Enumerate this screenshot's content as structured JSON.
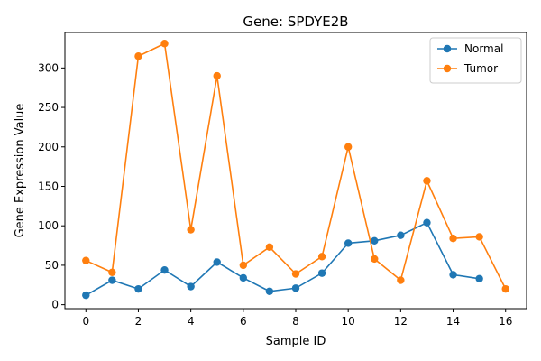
{
  "chart_data": {
    "type": "line",
    "title": "Gene: SPDYE2B",
    "xlabel": "Sample ID",
    "ylabel": "Gene Expression Value",
    "xlim": [
      -0.8,
      16.8
    ],
    "ylim": [
      -5,
      345
    ],
    "xticks": [
      0,
      2,
      4,
      6,
      8,
      10,
      12,
      14,
      16
    ],
    "yticks": [
      0,
      50,
      100,
      150,
      200,
      250,
      300
    ],
    "grid": false,
    "legend_position": "top-right",
    "series": [
      {
        "name": "Normal",
        "color": "#1f77b4",
        "x": [
          0,
          1,
          2,
          3,
          4,
          5,
          6,
          7,
          8,
          9,
          10,
          11,
          12,
          13,
          14,
          15
        ],
        "y": [
          12,
          31,
          20,
          44,
          23,
          54,
          34,
          17,
          21,
          40,
          78,
          81,
          88,
          104,
          38,
          33
        ]
      },
      {
        "name": "Tumor",
        "color": "#ff7f0e",
        "x": [
          0,
          1,
          2,
          3,
          4,
          5,
          6,
          7,
          8,
          9,
          10,
          11,
          12,
          13,
          14,
          15,
          16
        ],
        "y": [
          56,
          41,
          315,
          331,
          95,
          290,
          50,
          73,
          39,
          61,
          200,
          58,
          31,
          157,
          84,
          86,
          20
        ]
      }
    ]
  }
}
